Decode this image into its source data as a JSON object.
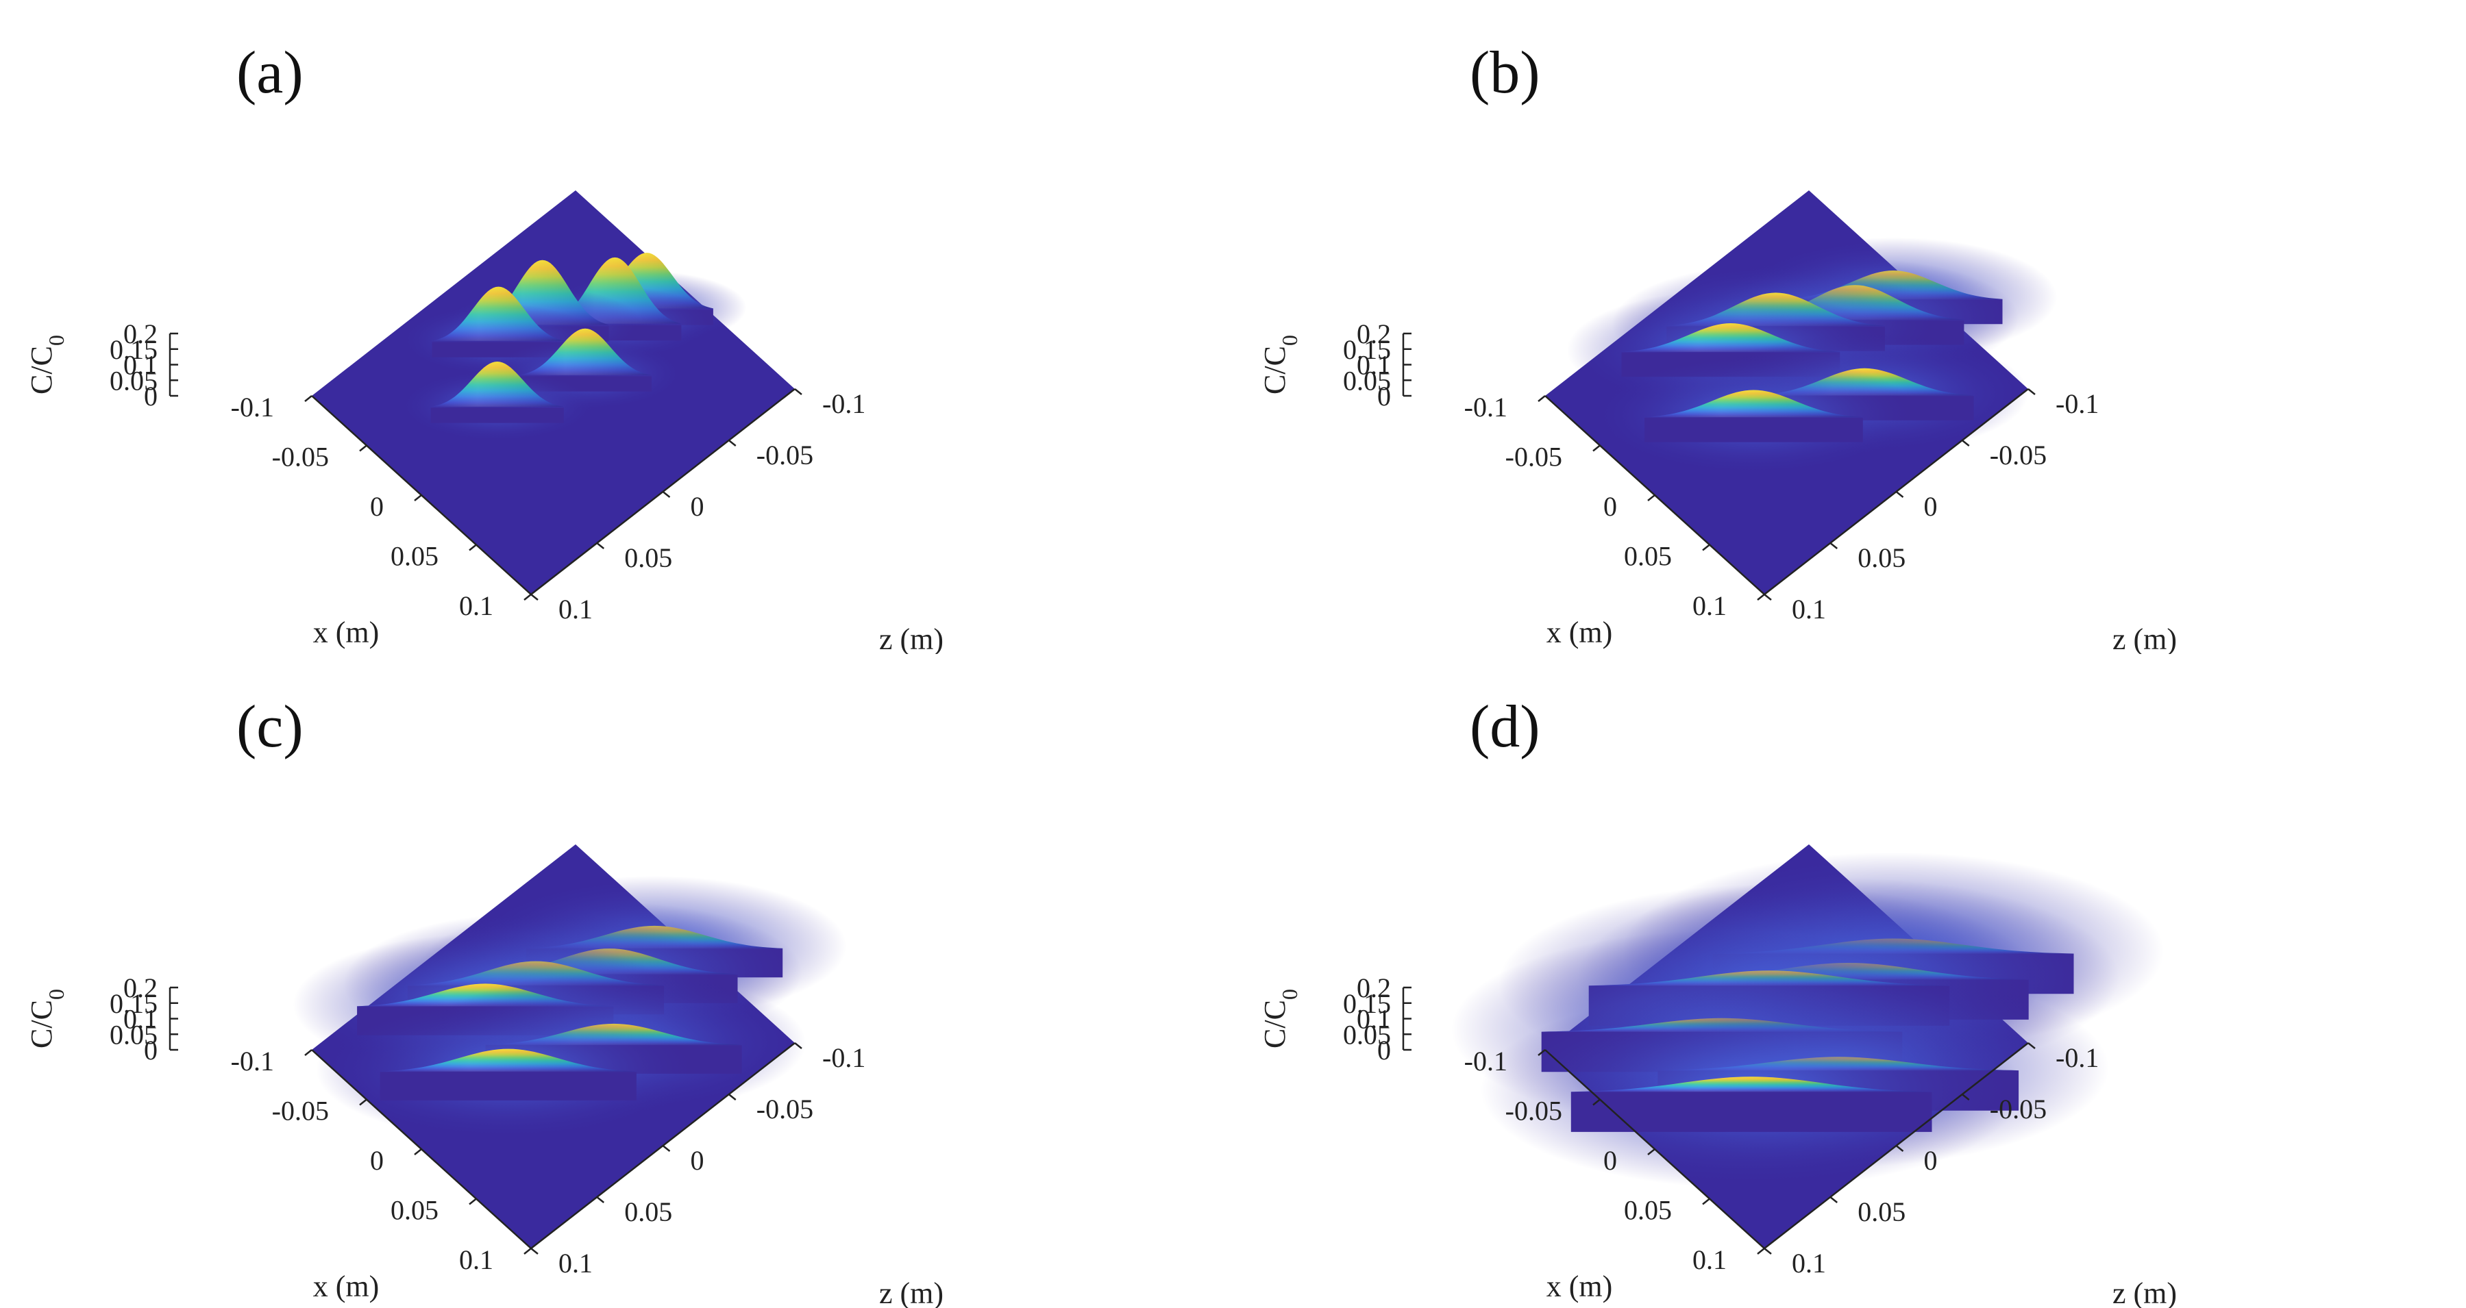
{
  "colors": {
    "floor": "#3a2a9e",
    "colormap": [
      "#3d2a9a",
      "#3b4fd6",
      "#2f86e8",
      "#1db7c9",
      "#37c98a",
      "#a9d43a",
      "#f2c12a",
      "#f9e025"
    ],
    "axis": "#222222"
  },
  "chart_data": [
    {
      "type": "surface3d",
      "panel_label": "(a)",
      "zlabel_main": "C/C",
      "zlabel_sub": "0",
      "xlabel": "x (m)",
      "ylabel": "z (m)",
      "x_ticks": [
        "-0.1",
        "-0.05",
        "0",
        "0.05",
        "0.1"
      ],
      "y_ticks": [
        "0.1",
        "0.05",
        "0",
        "-0.05",
        "-0.1"
      ],
      "z_ticks": [
        "0",
        "0.05",
        "0.1",
        "0.15",
        "0.2"
      ],
      "zlim": [
        0,
        0.2
      ],
      "xlim": [
        -0.1,
        0.1
      ],
      "ylim": [
        -0.1,
        0.1
      ],
      "peak_width_m": 0.007,
      "peaks": [
        {
          "x": -0.05,
          "z": 0.0,
          "height": 0.18
        },
        {
          "x": -0.04,
          "z": -0.025,
          "height": 0.215
        },
        {
          "x": -0.015,
          "z": 0.03,
          "height": 0.15
        },
        {
          "x": -0.01,
          "z": -0.055,
          "height": 0.22
        },
        {
          "x": 0.005,
          "z": -0.02,
          "height": 0.155
        },
        {
          "x": -0.005,
          "z": -0.075,
          "height": 0.185
        }
      ]
    },
    {
      "type": "surface3d",
      "panel_label": "(b)",
      "zlabel_main": "C/C",
      "zlabel_sub": "0",
      "xlabel": "x (m)",
      "ylabel": "z (m)",
      "x_ticks": [
        "-0.1",
        "-0.05",
        "0",
        "0.05",
        "0.1"
      ],
      "y_ticks": [
        "0.1",
        "0.05",
        "0",
        "-0.05",
        "-0.1"
      ],
      "z_ticks": [
        "0",
        "0.05",
        "0.1",
        "0.15",
        "0.2"
      ],
      "zlim": [
        0,
        0.2
      ],
      "xlim": [
        -0.1,
        0.1
      ],
      "ylim": [
        -0.1,
        0.1
      ],
      "peak_width_m": 0.0115,
      "peaks": [
        {
          "x": -0.04,
          "z": -0.025,
          "height": 0.11
        },
        {
          "x": -0.045,
          "z": 0.005,
          "height": 0.095
        },
        {
          "x": -0.01,
          "z": -0.06,
          "height": 0.115
        },
        {
          "x": -0.005,
          "z": -0.085,
          "height": 0.095
        },
        {
          "x": 0.0,
          "z": 0.025,
          "height": 0.09
        },
        {
          "x": 0.035,
          "z": -0.03,
          "height": 0.09
        }
      ]
    },
    {
      "type": "surface3d",
      "panel_label": "(c)",
      "zlabel_main": "C/C",
      "zlabel_sub": "0",
      "xlabel": "x (m)",
      "ylabel": "z (m)",
      "x_ticks": [
        "-0.1",
        "-0.05",
        "0",
        "0.05",
        "0.1"
      ],
      "y_ticks": [
        "0.1",
        "0.05",
        "0",
        "-0.05",
        "-0.1"
      ],
      "z_ticks": [
        "0",
        "0.05",
        "0.1",
        "0.15",
        "0.2"
      ],
      "zlim": [
        0,
        0.2
      ],
      "xlim": [
        -0.1,
        0.1
      ],
      "ylim": [
        -0.1,
        0.1
      ],
      "peak_width_m": 0.0135,
      "peaks": [
        {
          "x": -0.05,
          "z": 0.01,
          "height": 0.075
        },
        {
          "x": -0.04,
          "z": -0.02,
          "height": 0.08
        },
        {
          "x": -0.015,
          "z": -0.055,
          "height": 0.085
        },
        {
          "x": -0.01,
          "z": -0.085,
          "height": 0.075
        },
        {
          "x": -0.005,
          "z": 0.03,
          "height": 0.075
        },
        {
          "x": 0.025,
          "z": -0.025,
          "height": 0.07
        }
      ]
    },
    {
      "type": "surface3d",
      "panel_label": "(d)",
      "zlabel_main": "C/C",
      "zlabel_sub": "0",
      "xlabel": "x (m)",
      "ylabel": "z (m)",
      "x_ticks": [
        "-0.1",
        "-0.05",
        "0",
        "0.05",
        "0.1"
      ],
      "y_ticks": [
        "0.1",
        "0.05",
        "0",
        "-0.05",
        "-0.1"
      ],
      "z_ticks": [
        "0",
        "0.05",
        "0.1",
        "0.15",
        "0.2"
      ],
      "zlim": [
        0,
        0.2
      ],
      "xlim": [
        -0.1,
        0.1
      ],
      "ylim": [
        -0.1,
        0.1
      ],
      "peak_width_m": 0.019,
      "peaks": [
        {
          "x": -0.04,
          "z": -0.02,
          "height": 0.05
        },
        {
          "x": -0.035,
          "z": 0.02,
          "height": 0.045
        },
        {
          "x": -0.01,
          "z": -0.055,
          "height": 0.055
        },
        {
          "x": -0.005,
          "z": -0.085,
          "height": 0.05
        },
        {
          "x": 0.01,
          "z": 0.035,
          "height": 0.05
        },
        {
          "x": 0.035,
          "z": -0.01,
          "height": 0.045
        }
      ]
    }
  ]
}
